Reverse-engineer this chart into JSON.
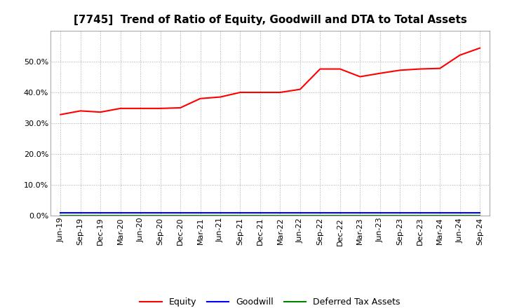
{
  "title": "[7745]  Trend of Ratio of Equity, Goodwill and DTA to Total Assets",
  "x_labels": [
    "Jun-19",
    "Sep-19",
    "Dec-19",
    "Mar-20",
    "Jun-20",
    "Sep-20",
    "Dec-20",
    "Mar-21",
    "Jun-21",
    "Sep-21",
    "Dec-21",
    "Mar-22",
    "Jun-22",
    "Sep-22",
    "Dec-22",
    "Mar-23",
    "Jun-23",
    "Sep-23",
    "Dec-23",
    "Mar-24",
    "Jun-24",
    "Sep-24"
  ],
  "equity": [
    0.328,
    0.34,
    0.336,
    0.348,
    0.348,
    0.348,
    0.35,
    0.38,
    0.385,
    0.4,
    0.4,
    0.4,
    0.41,
    0.476,
    0.476,
    0.451,
    0.462,
    0.472,
    0.476,
    0.478,
    0.521,
    0.544
  ],
  "goodwill": [
    0.01,
    0.01,
    0.01,
    0.01,
    0.01,
    0.01,
    0.01,
    0.01,
    0.01,
    0.01,
    0.01,
    0.01,
    0.01,
    0.01,
    0.01,
    0.01,
    0.01,
    0.01,
    0.01,
    0.01,
    0.01,
    0.01
  ],
  "dta": [
    0.001,
    0.001,
    0.001,
    0.001,
    0.001,
    0.001,
    0.001,
    0.001,
    0.001,
    0.001,
    0.001,
    0.001,
    0.001,
    0.001,
    0.001,
    0.001,
    0.001,
    0.001,
    0.001,
    0.001,
    0.001,
    0.001
  ],
  "equity_color": "#FF0000",
  "goodwill_color": "#0000FF",
  "dta_color": "#008000",
  "background_color": "#FFFFFF",
  "plot_bg_color": "#FFFFFF",
  "grid_color": "#AAAAAA",
  "ylim": [
    0.0,
    0.6
  ],
  "yticks": [
    0.0,
    0.1,
    0.2,
    0.3,
    0.4,
    0.5
  ],
  "title_fontsize": 11,
  "tick_fontsize": 8,
  "legend_labels": [
    "Equity",
    "Goodwill",
    "Deferred Tax Assets"
  ],
  "legend_fontsize": 9
}
